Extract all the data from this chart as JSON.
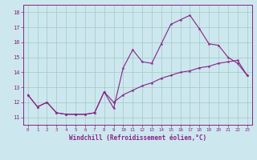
{
  "xlabel": "Windchill (Refroidissement éolien,°C)",
  "bg_color": "#cce8ee",
  "grid_color": "#aacccc",
  "line_color": "#882288",
  "spine_color": "#882288",
  "ylim": [
    10.5,
    18.5
  ],
  "xlim": [
    -0.5,
    23.5
  ],
  "yticks": [
    11,
    12,
    13,
    14,
    15,
    16,
    17,
    18
  ],
  "xticks": [
    0,
    1,
    2,
    3,
    4,
    5,
    6,
    7,
    8,
    9,
    10,
    11,
    12,
    13,
    14,
    15,
    16,
    17,
    18,
    19,
    20,
    21,
    22,
    23
  ],
  "line1_x": [
    0,
    1,
    2,
    3,
    4,
    5,
    6,
    7,
    8,
    9,
    10,
    11,
    12,
    13,
    14,
    15,
    16,
    17,
    18,
    19,
    20,
    21,
    22,
    23
  ],
  "line1_y": [
    12.5,
    11.7,
    12.0,
    11.3,
    11.2,
    11.2,
    11.2,
    11.3,
    12.7,
    11.6,
    14.3,
    15.5,
    14.7,
    14.6,
    15.9,
    17.2,
    17.5,
    17.8,
    16.9,
    15.9,
    15.8,
    15.0,
    14.6,
    13.8
  ],
  "line2_x": [
    0,
    1,
    2,
    3,
    4,
    5,
    6,
    7,
    8,
    9,
    10,
    11,
    12,
    13,
    14,
    15,
    16,
    17,
    18,
    19,
    20,
    21,
    22,
    23
  ],
  "line2_y": [
    12.5,
    11.7,
    12.0,
    11.3,
    11.2,
    11.2,
    11.2,
    11.3,
    12.7,
    12.0,
    12.5,
    12.8,
    13.1,
    13.3,
    13.6,
    13.8,
    14.0,
    14.1,
    14.3,
    14.4,
    14.6,
    14.7,
    14.8,
    13.8
  ]
}
